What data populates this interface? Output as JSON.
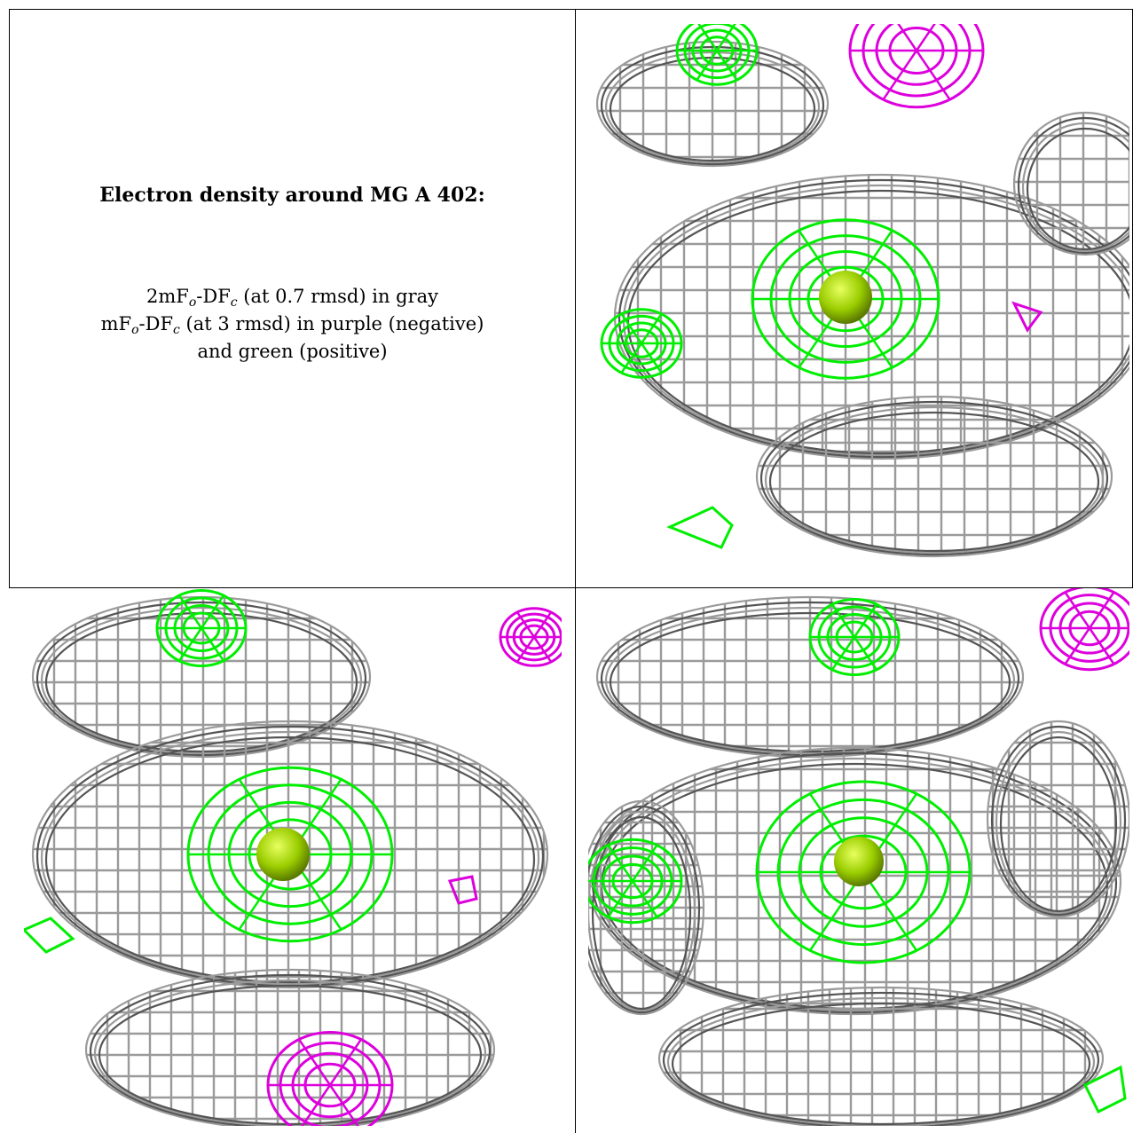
{
  "caption": {
    "title": "Electron density around MG A 402:",
    "line1": {
      "a": "2mF",
      "a_sub": "o",
      "b": "-DF",
      "b_sub": "c",
      "c": " (at 0.7 rmsd) in gray"
    },
    "line2": {
      "a": "mF",
      "a_sub": "o",
      "b": "-DF",
      "b_sub": "c",
      "c": " (at 3 rmsd) in purple (negative)"
    },
    "line3": "and green (positive)"
  },
  "colors": {
    "mesh_gray": "#9a9a9a",
    "mesh_dark": "#555555",
    "positive_green": "#00ee00",
    "negative_purple": "#dd00dd",
    "atom_mg": "#9acd00"
  },
  "views": [
    "view-top-right",
    "view-bottom-left",
    "view-bottom-right"
  ]
}
